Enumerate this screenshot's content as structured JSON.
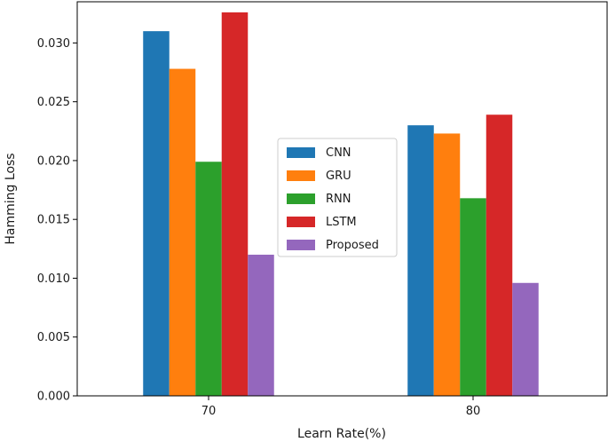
{
  "chart_data": {
    "type": "bar",
    "title": "",
    "xlabel": "Learn Rate(%)",
    "ylabel": "Hamming Loss",
    "categories": [
      "70",
      "80"
    ],
    "ylim": [
      0,
      0.0335
    ],
    "yticks": [
      "0.000",
      "0.005",
      "0.010",
      "0.015",
      "0.020",
      "0.025",
      "0.030"
    ],
    "grid": false,
    "legend_position": "center",
    "series": [
      {
        "name": "CNN",
        "color": "#1f77b4",
        "values": [
          0.031,
          0.023
        ]
      },
      {
        "name": "GRU",
        "color": "#ff7f0e",
        "values": [
          0.0278,
          0.0223
        ]
      },
      {
        "name": "RNN",
        "color": "#2ca02c",
        "values": [
          0.0199,
          0.0168
        ]
      },
      {
        "name": "LSTM",
        "color": "#d62728",
        "values": [
          0.0326,
          0.0239
        ]
      },
      {
        "name": "Proposed",
        "color": "#9467bd",
        "values": [
          0.012,
          0.0096
        ]
      }
    ]
  }
}
